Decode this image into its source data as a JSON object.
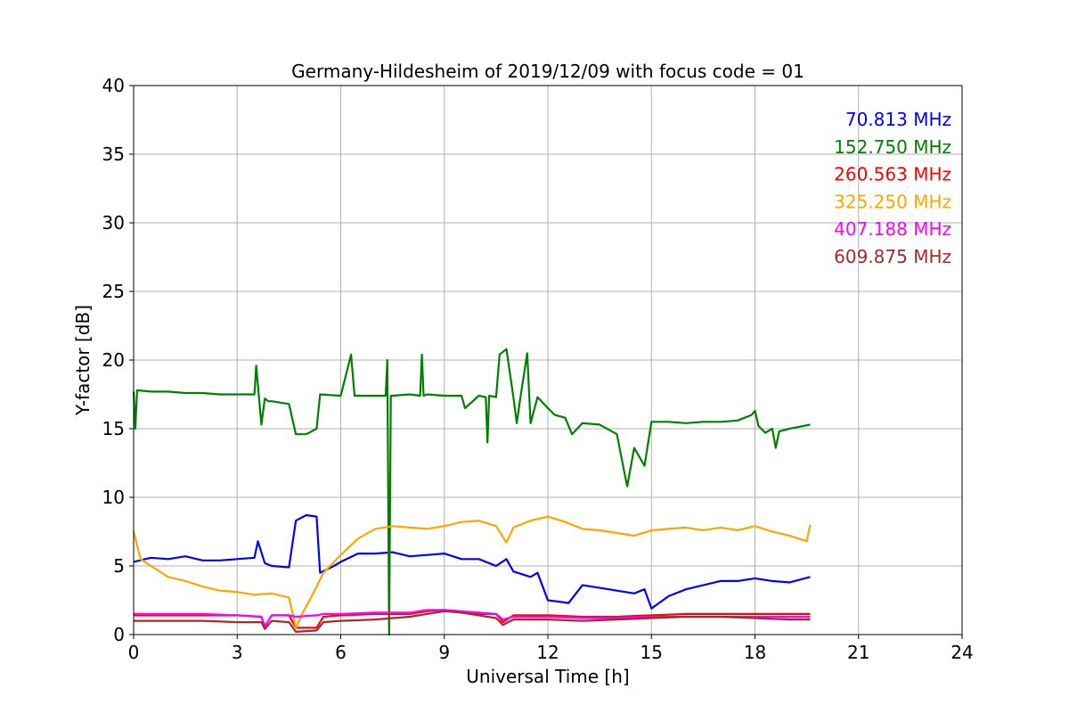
{
  "chart_data": {
    "type": "line",
    "title": "Germany-Hildesheim of 2019/12/09 with focus code = 01",
    "xlabel": "Universal Time [h]",
    "ylabel": "Y-factor [dB]",
    "xlim": [
      0,
      24
    ],
    "ylim": [
      0,
      40
    ],
    "xticks": [
      0,
      3,
      6,
      9,
      12,
      15,
      18,
      21,
      24
    ],
    "yticks": [
      0,
      5,
      10,
      15,
      20,
      25,
      30,
      35,
      40
    ],
    "grid": true,
    "legend_placement": "top-right",
    "series": [
      {
        "name": "70.813 MHz",
        "color": "#0000ff",
        "x": [
          0,
          0.5,
          1,
          1.5,
          2,
          2.5,
          3,
          3.5,
          3.6,
          3.8,
          4.0,
          4.5,
          4.7,
          5.0,
          5.3,
          5.4,
          5.8,
          6.0,
          6.5,
          7.0,
          7.5,
          8.0,
          8.5,
          9.0,
          9.5,
          10.0,
          10.5,
          10.8,
          11.0,
          11.5,
          11.7,
          12.0,
          12.3,
          12.6,
          13.0,
          13.5,
          14.0,
          14.5,
          14.8,
          15.0,
          15.5,
          16.0,
          16.5,
          17.0,
          17.5,
          18.0,
          18.5,
          19.0,
          19.6
        ],
        "y": [
          5.3,
          5.6,
          5.5,
          5.7,
          5.4,
          5.4,
          5.5,
          5.6,
          6.8,
          5.2,
          5.0,
          4.9,
          8.3,
          8.7,
          8.6,
          4.5,
          5.0,
          5.3,
          5.9,
          5.9,
          6.0,
          5.7,
          5.8,
          5.9,
          5.5,
          5.5,
          5.0,
          5.5,
          4.6,
          4.2,
          4.5,
          2.5,
          2.4,
          2.3,
          3.6,
          3.4,
          3.2,
          3.0,
          3.3,
          1.9,
          2.8,
          3.3,
          3.6,
          3.9,
          3.9,
          4.1,
          3.9,
          3.8,
          4.2
        ]
      },
      {
        "name": "152.750 MHz",
        "color": "#008000",
        "x": [
          0,
          0.05,
          0.1,
          0.5,
          1,
          1.5,
          2,
          2.5,
          3,
          3.5,
          3.55,
          3.7,
          3.8,
          3.9,
          4.0,
          4.5,
          4.7,
          5.0,
          5.3,
          5.4,
          6.0,
          6.3,
          6.4,
          7.0,
          7.3,
          7.35,
          7.4,
          7.45,
          7.5,
          8.0,
          8.3,
          8.35,
          8.4,
          8.5,
          9.0,
          9.5,
          9.6,
          10.0,
          10.2,
          10.25,
          10.3,
          10.5,
          10.6,
          10.8,
          11.0,
          11.1,
          11.2,
          11.4,
          11.5,
          11.7,
          12.0,
          12.2,
          12.5,
          12.7,
          13.0,
          13.5,
          14.0,
          14.2,
          14.3,
          14.5,
          14.8,
          15.0,
          15.5,
          16.0,
          16.5,
          17.0,
          17.5,
          17.9,
          18.0,
          18.1,
          18.3,
          18.5,
          18.6,
          18.7,
          19.0,
          19.6
        ],
        "y": [
          17.7,
          15.0,
          17.8,
          17.7,
          17.7,
          17.6,
          17.6,
          17.5,
          17.5,
          17.5,
          19.6,
          15.3,
          17.2,
          17.0,
          17.0,
          16.8,
          14.6,
          14.6,
          15.0,
          17.5,
          17.4,
          20.4,
          17.4,
          17.4,
          17.4,
          20.0,
          0.0,
          17.4,
          17.4,
          17.5,
          17.4,
          20.4,
          17.4,
          17.5,
          17.4,
          17.4,
          16.5,
          17.4,
          17.3,
          14.0,
          17.4,
          17.3,
          20.4,
          20.8,
          17.3,
          15.4,
          17.2,
          20.5,
          15.4,
          17.3,
          16.5,
          16.0,
          15.8,
          14.6,
          15.4,
          15.3,
          14.6,
          12.0,
          10.8,
          13.6,
          12.3,
          15.5,
          15.5,
          15.4,
          15.5,
          15.5,
          15.6,
          16.0,
          16.3,
          15.2,
          14.7,
          15.0,
          13.6,
          14.8,
          15.0,
          15.3
        ]
      },
      {
        "name": "260.563 MHz",
        "color": "#ff0000",
        "x": [
          0,
          1,
          2,
          3,
          3.7,
          3.8,
          4.0,
          4.5,
          4.7,
          5.3,
          5.5,
          6,
          7,
          8,
          8.5,
          9,
          9.5,
          10,
          10.5,
          10.7,
          11,
          12,
          13,
          14,
          15,
          16,
          17,
          18,
          19,
          19.6
        ],
        "y": [
          1.4,
          1.4,
          1.4,
          1.4,
          1.3,
          0.6,
          1.4,
          1.4,
          0.5,
          0.5,
          1.3,
          1.4,
          1.5,
          1.5,
          1.7,
          1.8,
          1.6,
          1.5,
          1.5,
          0.9,
          1.4,
          1.4,
          1.3,
          1.3,
          1.4,
          1.5,
          1.5,
          1.5,
          1.5,
          1.5
        ]
      },
      {
        "name": "325.250 MHz",
        "color": "#ffa500",
        "x": [
          0,
          0.2,
          0.5,
          1,
          1.5,
          2,
          2.5,
          3,
          3.5,
          4.0,
          4.5,
          4.7,
          4.9,
          5.2,
          5.5,
          6.0,
          6.5,
          7.0,
          7.5,
          8.0,
          8.5,
          9.0,
          9.5,
          10.0,
          10.5,
          10.8,
          11.0,
          11.5,
          12.0,
          12.5,
          13.0,
          13.5,
          14.0,
          14.5,
          15.0,
          15.5,
          16.0,
          16.5,
          17.0,
          17.5,
          18.0,
          18.5,
          19.0,
          19.5,
          19.6
        ],
        "y": [
          7.5,
          5.5,
          5.0,
          4.2,
          3.9,
          3.5,
          3.2,
          3.1,
          2.9,
          3.0,
          2.7,
          0.5,
          1.6,
          3.0,
          4.5,
          5.8,
          7.0,
          7.7,
          7.9,
          7.8,
          7.7,
          7.9,
          8.2,
          8.3,
          7.9,
          6.7,
          7.8,
          8.3,
          8.6,
          8.2,
          7.7,
          7.6,
          7.4,
          7.2,
          7.6,
          7.7,
          7.8,
          7.6,
          7.8,
          7.6,
          7.9,
          7.5,
          7.2,
          6.8,
          8.0
        ]
      },
      {
        "name": "407.188 MHz",
        "color": "#ff00ff",
        "x": [
          0,
          1,
          2,
          3,
          3.7,
          3.8,
          4.0,
          4.5,
          4.7,
          5.3,
          5.5,
          6,
          7,
          8,
          8.5,
          9,
          9.5,
          10,
          10.5,
          10.7,
          11,
          12,
          13,
          14,
          15,
          16,
          17,
          18,
          19,
          19.6
        ],
        "y": [
          1.5,
          1.5,
          1.5,
          1.4,
          1.3,
          0.6,
          1.4,
          1.4,
          1.3,
          1.4,
          1.5,
          1.5,
          1.6,
          1.6,
          1.8,
          1.8,
          1.7,
          1.6,
          1.5,
          1.1,
          1.3,
          1.3,
          1.2,
          1.2,
          1.3,
          1.3,
          1.3,
          1.3,
          1.3,
          1.3
        ]
      },
      {
        "name": "609.875 MHz",
        "color": "#a52a2a",
        "x": [
          0,
          1,
          2,
          3,
          3.7,
          3.8,
          4.0,
          4.5,
          4.7,
          5.3,
          5.5,
          6,
          7,
          8,
          8.5,
          9,
          9.5,
          10,
          10.5,
          10.7,
          11,
          12,
          13,
          14,
          15,
          16,
          17,
          18,
          19,
          19.6
        ],
        "y": [
          1.0,
          1.0,
          1.0,
          0.9,
          0.9,
          0.4,
          1.0,
          0.9,
          0.2,
          0.3,
          0.9,
          1.0,
          1.1,
          1.3,
          1.5,
          1.7,
          1.6,
          1.4,
          1.2,
          0.7,
          1.1,
          1.1,
          1.0,
          1.1,
          1.2,
          1.3,
          1.3,
          1.2,
          1.1,
          1.1
        ]
      }
    ]
  }
}
